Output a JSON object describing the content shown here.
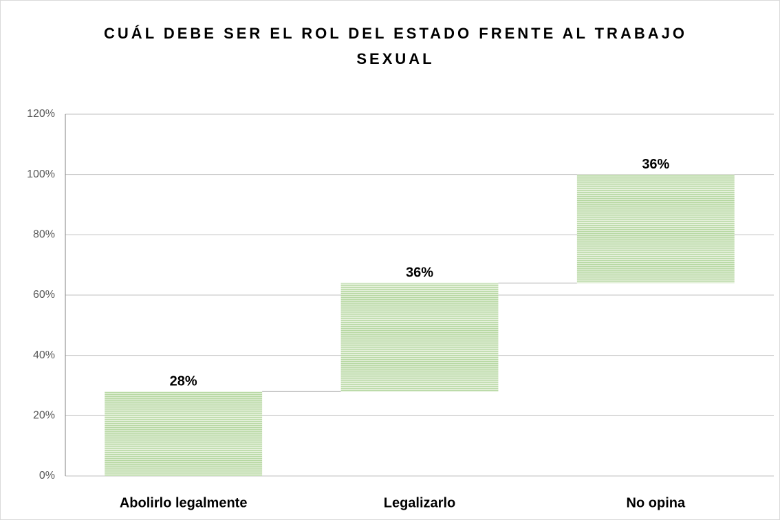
{
  "chart_data": {
    "type": "waterfall",
    "title": "CUÁL DEBE SER EL ROL DEL ESTADO FRENTE AL TRABAJO SEXUAL",
    "categories": [
      "Abolirlo legalmente",
      "Legalizarlo",
      "No opina"
    ],
    "values": [
      28,
      36,
      36
    ],
    "value_labels": [
      "28%",
      "36%",
      "36%"
    ],
    "color": "#a9d18e",
    "ylim": [
      0,
      120
    ],
    "yticks": [
      {
        "value": 0,
        "label": "0%"
      },
      {
        "value": 20,
        "label": "20%"
      },
      {
        "value": 40,
        "label": "40%"
      },
      {
        "value": 60,
        "label": "60%"
      },
      {
        "value": 80,
        "label": "80%"
      },
      {
        "value": 100,
        "label": "100%"
      },
      {
        "value": 120,
        "label": "120%"
      }
    ],
    "grid": true
  }
}
